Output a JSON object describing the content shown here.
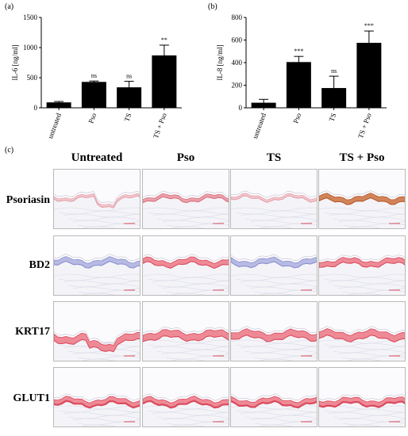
{
  "panels": {
    "a": {
      "letter": "(a)"
    },
    "b": {
      "letter": "(b)"
    },
    "c": {
      "letter": "(c)"
    }
  },
  "chart_data": [
    {
      "type": "bar",
      "panel": "(a)",
      "ylabel": "IL-6 [ng/ml]",
      "ylim": [
        0,
        1500
      ],
      "yticks": [
        0,
        500,
        1000,
        1500
      ],
      "categories": [
        "untreated",
        "Pso",
        "TS",
        "TS + Pso"
      ],
      "values": [
        90,
        430,
        340,
        870
      ],
      "errors": [
        15,
        15,
        100,
        170
      ],
      "significance": [
        "",
        "ns",
        "ns",
        "**"
      ],
      "bar_color": "#000000"
    },
    {
      "type": "bar",
      "panel": "(b)",
      "ylabel": "IL-8 [ng/ml]",
      "ylim": [
        0,
        800
      ],
      "yticks": [
        0,
        200,
        400,
        600,
        800
      ],
      "categories": [
        "untreated",
        "Pso",
        "TS",
        "TS + Pso"
      ],
      "values": [
        45,
        405,
        175,
        575
      ],
      "errors": [
        30,
        50,
        105,
        105
      ],
      "significance": [
        "",
        "***",
        "ns",
        "***"
      ],
      "bar_color": "#000000"
    }
  ],
  "histology": {
    "columns": [
      "Untreated",
      "Pso",
      "TS",
      "TS + Pso"
    ],
    "rows": [
      "Psoriasin",
      "BD2",
      "KRT17",
      "GLUT1"
    ],
    "stain_colors": {
      "dermis": "#f4f4f8",
      "epidermis_blue": "#8a8fcf",
      "epidermis_red": "#d94a5c",
      "epidermis_pink": "#ee8a96",
      "brown": "#b3582a"
    },
    "intensity": [
      [
        "faint",
        "light",
        "faint",
        "brown"
      ],
      [
        "blue",
        "red",
        "blue",
        "red"
      ],
      [
        "red",
        "red",
        "red",
        "red"
      ],
      [
        "red",
        "red",
        "red",
        "red"
      ]
    ]
  }
}
